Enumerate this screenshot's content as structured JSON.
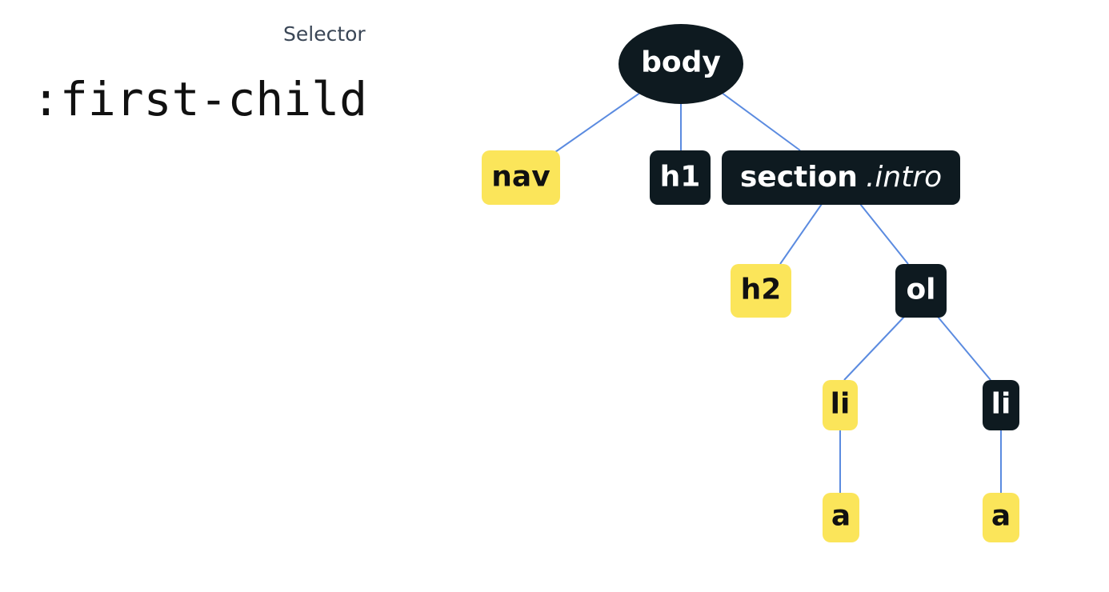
{
  "selector": {
    "caption": "Selector",
    "code": ":first-child"
  },
  "tree": {
    "root": "body",
    "nodes": {
      "nav": "nav",
      "h1": "h1",
      "section": "section",
      "section_class": ".intro",
      "h2": "h2",
      "ol": "ol",
      "li1": "li",
      "li2": "li",
      "a1": "a",
      "a2": "a"
    },
    "matched": [
      "nav",
      "h2",
      "li1",
      "a1",
      "a2"
    ]
  },
  "colors": {
    "dark_node": "#0e1a20",
    "matched_node": "#fbe55a",
    "edge": "#5b8be0"
  }
}
